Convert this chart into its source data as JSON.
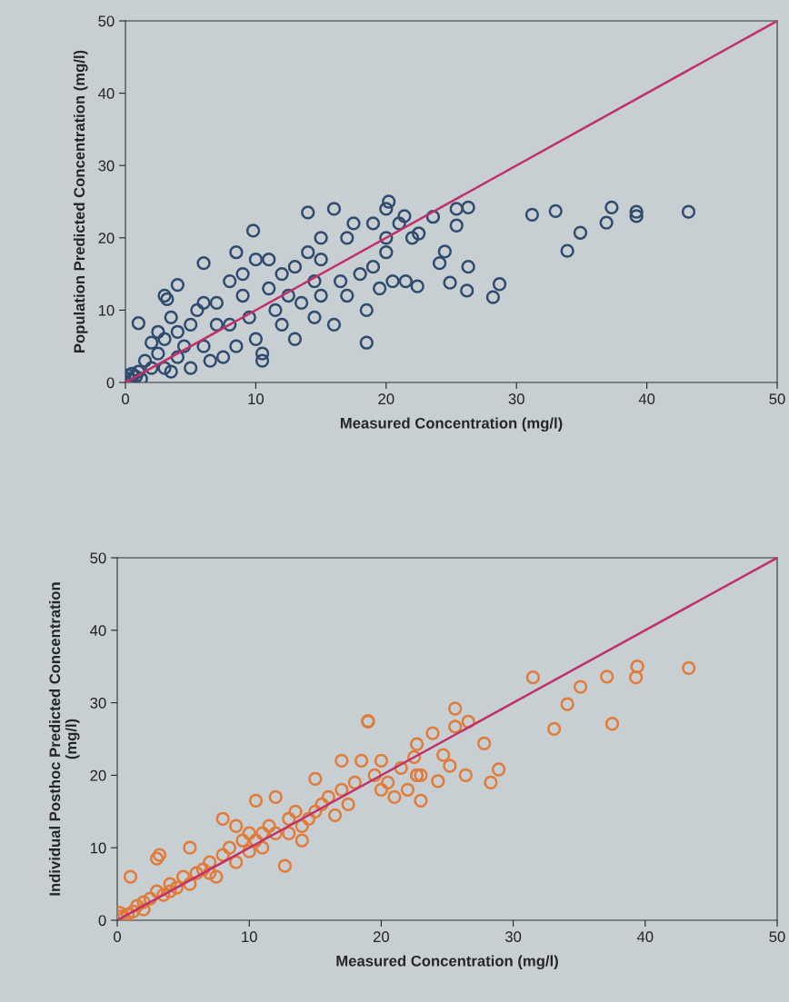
{
  "chart_data": [
    {
      "type": "scatter",
      "xlabel": "Measured Concentration (mg/l)",
      "ylabel": "Population Predicted Concentration (mg/l)",
      "xlim": [
        0,
        50
      ],
      "ylim": [
        0,
        50
      ],
      "xticks": [
        0,
        10,
        20,
        30,
        40,
        50
      ],
      "yticks": [
        0,
        10,
        20,
        30,
        40,
        50
      ],
      "grid": false,
      "series": [
        {
          "marker": "circle",
          "color": "#2f4b6e",
          "x": [
            0.3,
            0.5,
            0.2,
            0.8,
            1,
            0.5,
            1.2,
            1,
            1.5,
            2,
            2,
            2.5,
            2.5,
            3,
            3,
            3.2,
            3,
            3.5,
            3.5,
            4,
            4,
            4,
            4.5,
            5,
            5,
            5.5,
            6,
            6,
            6,
            6.5,
            7,
            7,
            7.5,
            8,
            8,
            8.5,
            8.5,
            9,
            9,
            9.5,
            9.8,
            10,
            10,
            10.5,
            10.5,
            11,
            11,
            11.5,
            12,
            12,
            12.5,
            13,
            13,
            13.5,
            14,
            14,
            14.5,
            14.5,
            15,
            15,
            15,
            16,
            16,
            16.5,
            17,
            17,
            17.5,
            18,
            18.5,
            18.5,
            19,
            19,
            19.5,
            20,
            20,
            20,
            20.5,
            21,
            21.5,
            22,
            22.4,
            24.9,
            26.2,
            28.2,
            28.7,
            26.3,
            24.1,
            24.5,
            25.4,
            26.3,
            25.4,
            23.6,
            22.5,
            20.2,
            21.4,
            31.2,
            33.0,
            37.3,
            36.9,
            34.9,
            33.9,
            39.2,
            39.2,
            43.2
          ],
          "values": [
            0.5,
            0.3,
            1,
            0.8,
            1.5,
            1.2,
            0.5,
            8.2,
            3,
            5.5,
            2,
            7,
            4,
            6,
            12,
            11.5,
            2,
            9,
            1.5,
            13.5,
            7,
            3.5,
            5,
            8,
            2,
            10,
            11,
            16.5,
            5,
            3,
            8,
            11,
            3.5,
            14,
            8,
            18,
            5,
            15,
            12,
            9,
            21,
            17,
            6,
            4,
            3,
            13,
            17,
            10,
            15,
            8,
            12,
            6,
            16,
            11,
            23.5,
            18,
            14,
            9,
            20,
            17,
            12,
            8,
            24,
            14,
            20,
            12,
            22,
            15,
            10,
            5.5,
            22,
            16,
            13,
            24,
            20,
            18,
            14,
            22,
            14,
            20,
            13.3,
            13.8,
            12.7,
            11.8,
            13.6,
            16.0,
            16.5,
            18.1,
            24.0,
            24.2,
            21.7,
            22.9,
            20.6,
            25.0,
            23.0,
            23.2,
            23.7,
            24.2,
            22.1,
            20.7,
            18.2,
            23.6,
            23.0,
            23.6
          ]
        },
        {
          "type": "line",
          "marker": "none",
          "color": "#c0306a",
          "x": [
            0,
            50
          ],
          "values": [
            0,
            50
          ]
        }
      ]
    },
    {
      "type": "scatter",
      "xlabel": "Measured Concentration (mg/l)",
      "ylabel": "Individual Posthoc Predicted Concentration\n(mg/l)",
      "xlim": [
        0,
        50
      ],
      "ylim": [
        0,
        50
      ],
      "xticks": [
        0,
        10,
        20,
        30,
        40,
        50
      ],
      "yticks": [
        0,
        10,
        20,
        30,
        40,
        50
      ],
      "grid": false,
      "series": [
        {
          "marker": "circle",
          "color": "#e07b39",
          "x": [
            0.3,
            0.5,
            0.2,
            0.8,
            1,
            1.2,
            1.5,
            2,
            2,
            2.5,
            3,
            3,
            3.2,
            3.5,
            4,
            4,
            4.5,
            5,
            5.5,
            5.5,
            6,
            6.5,
            7,
            7,
            7.5,
            8,
            8,
            8.5,
            9,
            9,
            9.5,
            10,
            10,
            10.5,
            10.5,
            11,
            11,
            11.5,
            12,
            12,
            12.7,
            13,
            13,
            13.5,
            14,
            14,
            14.5,
            15,
            15,
            15.5,
            16,
            16.5,
            17,
            17,
            17.5,
            18,
            18.5,
            19,
            19.5,
            20,
            20,
            20.5,
            21,
            21.5,
            22,
            22.5,
            23,
            23,
            19.0,
            22.7,
            23.9,
            22.7,
            24.7,
            25.2,
            24.3,
            22.7,
            25.6,
            26.6,
            25.6,
            26.4,
            27.8,
            28.9,
            28.3,
            31.5,
            35.1,
            34.1,
            33.1,
            37.1,
            37.5,
            39.4,
            39.3,
            43.3
          ],
          "values": [
            0.5,
            0.3,
            1,
            0.8,
            6,
            1.2,
            2,
            2.5,
            1.5,
            3,
            8.5,
            4,
            9,
            3.5,
            5,
            4,
            4.5,
            6,
            10,
            5,
            6.5,
            7,
            8,
            6.5,
            6,
            9,
            14,
            10,
            13,
            8,
            11,
            12,
            9.5,
            16.5,
            11,
            12,
            10,
            13,
            17,
            12,
            7.5,
            14,
            12,
            15,
            13,
            11,
            14,
            19.5,
            15,
            16,
            17,
            14.5,
            22,
            18,
            16,
            19,
            22,
            27.5,
            20,
            22,
            18,
            19,
            17,
            21,
            18,
            22.5,
            20,
            16.5,
            27.4,
            24.3,
            25.8,
            20.0,
            22.8,
            21.3,
            19.2,
            20.0,
            29.2,
            27.4,
            26.7,
            20.0,
            24.4,
            20.8,
            19.0,
            33.5,
            32.2,
            29.8,
            26.4,
            33.6,
            27.1,
            35.0,
            33.5,
            34.8
          ]
        },
        {
          "type": "line",
          "marker": "none",
          "color": "#c0306a",
          "x": [
            0,
            50
          ],
          "values": [
            0,
            50
          ]
        }
      ]
    }
  ]
}
